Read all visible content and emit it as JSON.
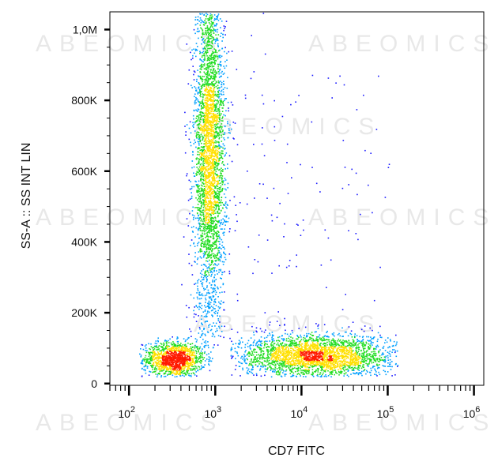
{
  "chart_data": {
    "type": "scatter",
    "title": "",
    "xlabel": "CD7 FITC",
    "ylabel": "SS-A :: SS INT LIN",
    "x_scale": "log",
    "xlim": [
      60,
      1300000
    ],
    "ylim": [
      -5000,
      1050000
    ],
    "x_ticks": [
      {
        "value": 100,
        "base": "10",
        "exp": "2"
      },
      {
        "value": 1000,
        "base": "10",
        "exp": "3"
      },
      {
        "value": 10000,
        "base": "10",
        "exp": "4"
      },
      {
        "value": 100000,
        "base": "10",
        "exp": "5"
      },
      {
        "value": 1000000,
        "base": "10",
        "exp": "6"
      }
    ],
    "y_ticks": [
      {
        "value": 0,
        "label": "0"
      },
      {
        "value": 200000,
        "label": "200K"
      },
      {
        "value": 400000,
        "label": "400K"
      },
      {
        "value": 600000,
        "label": "600K"
      },
      {
        "value": 800000,
        "label": "800K"
      },
      {
        "value": 1000000,
        "label": "1,0M"
      }
    ],
    "grid": false,
    "legend": "none",
    "color_scale": [
      "#1a1aff",
      "#00a0ff",
      "#22dd22",
      "#ffe000",
      "#ff1a00"
    ],
    "populations": [
      {
        "x_center": 330,
        "y_center": 70000,
        "x_spread_dec": 0.18,
        "y_spread": 25000,
        "count": 1400,
        "x_range": [
          130,
          1000
        ],
        "y_range": [
          20000,
          170000
        ]
      },
      {
        "x_center": 850,
        "y_center": 650000,
        "x_spread_dec": 0.09,
        "y_spread": 250000,
        "count": 3600,
        "x_range": [
          350,
          3000
        ],
        "y_range": [
          100000,
          1050000
        ]
      },
      {
        "x_center": 15000,
        "y_center": 80000,
        "x_spread_dec": 0.45,
        "y_spread": 30000,
        "count": 2800,
        "x_range": [
          1500,
          130000
        ],
        "y_range": [
          20000,
          180000
        ]
      },
      {
        "x_center": 5000,
        "y_center": 450000,
        "x_spread_dec": 0.7,
        "y_spread": 300000,
        "count": 180,
        "x_range": [
          1000,
          120000
        ],
        "y_range": [
          100000,
          1050000
        ]
      }
    ],
    "watermark": "ABEOMICS"
  }
}
